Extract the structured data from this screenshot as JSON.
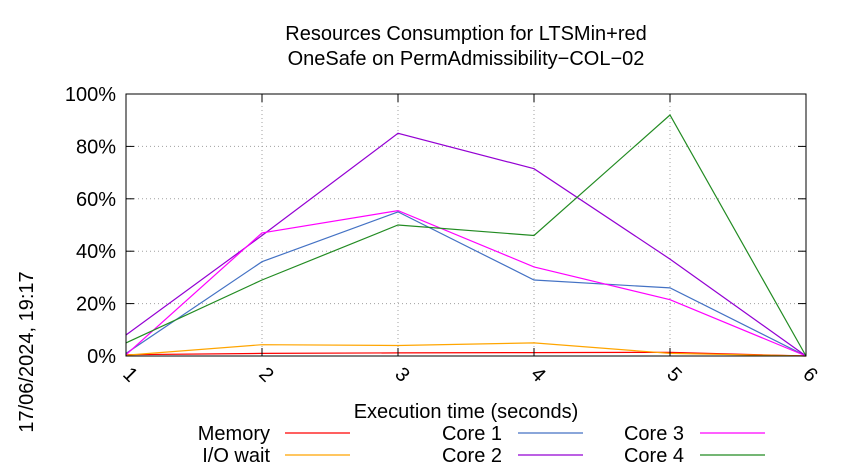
{
  "chart_data": {
    "type": "line",
    "title": "Resources Consumption for LTSMin+red",
    "subtitle": "OneSafe on PermAdmissibility−COL−02",
    "xlabel": "Execution time (seconds)",
    "ylabel": "",
    "x": [
      1,
      2,
      3,
      4,
      5,
      6
    ],
    "xlim": [
      1,
      6
    ],
    "ylim": [
      0,
      100
    ],
    "x_tick_labels": [
      "1",
      "2",
      "3",
      "4",
      "5",
      "6"
    ],
    "y_ticks": [
      0,
      20,
      40,
      60,
      80,
      100
    ],
    "y_tick_labels": [
      "0%",
      "20%",
      "40%",
      "60%",
      "80%",
      "100%"
    ],
    "grid": true,
    "legend_position": "bottom",
    "series": [
      {
        "name": "Memory",
        "color": "#ff0000",
        "values": [
          0.5,
          1.0,
          1.2,
          1.3,
          1.4,
          0
        ]
      },
      {
        "name": "I/O wait",
        "color": "#ffa500",
        "values": [
          0.3,
          4.3,
          4.0,
          5.0,
          1.0,
          0
        ]
      },
      {
        "name": "Core 1",
        "color": "#4472c4",
        "values": [
          1,
          36,
          55,
          29,
          26,
          0
        ]
      },
      {
        "name": "Core 2",
        "color": "#9400d3",
        "values": [
          8,
          46,
          85,
          71.5,
          37,
          0
        ]
      },
      {
        "name": "Core 3",
        "color": "#ff00ff",
        "values": [
          0.5,
          47,
          55.5,
          34,
          21.5,
          0
        ]
      },
      {
        "name": "Core 4",
        "color": "#228b22",
        "values": [
          5,
          29,
          50,
          46,
          92,
          0
        ]
      }
    ]
  },
  "side_stamp": "17/06/2024, 19:17"
}
